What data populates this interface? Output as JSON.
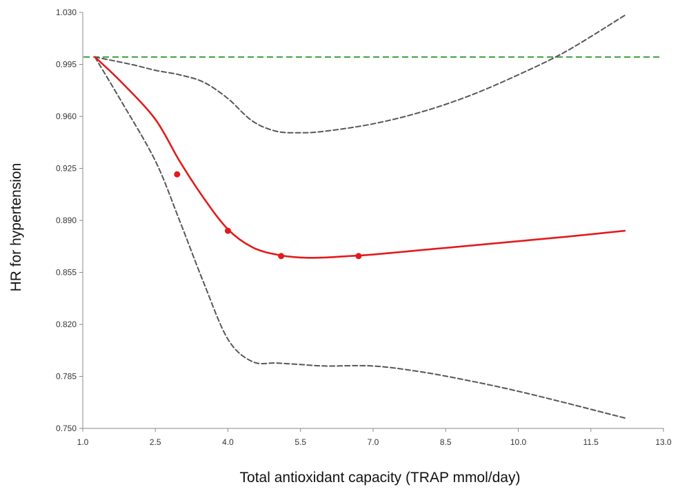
{
  "chart_data": {
    "type": "line",
    "xlabel": "Total antioxidant capacity (TRAP mmol/day)",
    "ylabel": "HR for hypertension",
    "xlim": [
      1.0,
      13.0
    ],
    "ylim": [
      0.75,
      1.03
    ],
    "x_ticks": [
      "1.0",
      "2.5",
      "4.0",
      "5.5",
      "7.0",
      "8.5",
      "10.0",
      "11.5",
      "13.0"
    ],
    "y_ticks": [
      "1.030",
      "0.995",
      "0.960",
      "0.925",
      "0.890",
      "0.855",
      "0.820",
      "0.785",
      "0.750"
    ],
    "grid": false,
    "legend": "none",
    "reference_line": {
      "y": 1.0,
      "color": "#3a9a3a",
      "style": "dashed"
    },
    "series": [
      {
        "role": "estimate",
        "color": "#e31a1c",
        "style": "solid",
        "points": [
          [
            1.25,
            1.0
          ],
          [
            1.8,
            0.983
          ],
          [
            2.5,
            0.958
          ],
          [
            3.0,
            0.93
          ],
          [
            3.5,
            0.905
          ],
          [
            4.0,
            0.884
          ],
          [
            4.5,
            0.872
          ],
          [
            5.0,
            0.867
          ],
          [
            5.5,
            0.865
          ],
          [
            6.0,
            0.865
          ],
          [
            6.5,
            0.866
          ],
          [
            7.0,
            0.867
          ],
          [
            8.0,
            0.87
          ],
          [
            9.0,
            0.873
          ],
          [
            10.0,
            0.876
          ],
          [
            11.0,
            0.879
          ],
          [
            12.2,
            0.883
          ]
        ],
        "markers": [
          [
            2.95,
            0.921
          ],
          [
            4.0,
            0.883
          ],
          [
            5.1,
            0.866
          ],
          [
            6.7,
            0.866
          ]
        ]
      },
      {
        "role": "upper-ci",
        "color": "#555555",
        "style": "dashed",
        "points": [
          [
            1.25,
            1.0
          ],
          [
            2.0,
            0.995
          ],
          [
            2.5,
            0.991
          ],
          [
            3.0,
            0.988
          ],
          [
            3.5,
            0.983
          ],
          [
            4.0,
            0.972
          ],
          [
            4.5,
            0.957
          ],
          [
            5.0,
            0.95
          ],
          [
            5.5,
            0.949
          ],
          [
            6.0,
            0.95
          ],
          [
            7.0,
            0.955
          ],
          [
            8.0,
            0.963
          ],
          [
            9.0,
            0.974
          ],
          [
            10.0,
            0.988
          ],
          [
            11.0,
            1.004
          ],
          [
            12.2,
            1.028
          ]
        ]
      },
      {
        "role": "lower-ci",
        "color": "#555555",
        "style": "dashed",
        "points": [
          [
            1.25,
            1.0
          ],
          [
            1.8,
            0.97
          ],
          [
            2.5,
            0.93
          ],
          [
            3.0,
            0.89
          ],
          [
            3.5,
            0.848
          ],
          [
            4.0,
            0.81
          ],
          [
            4.5,
            0.795
          ],
          [
            5.0,
            0.794
          ],
          [
            5.5,
            0.793
          ],
          [
            6.0,
            0.792
          ],
          [
            7.0,
            0.792
          ],
          [
            8.0,
            0.788
          ],
          [
            9.0,
            0.782
          ],
          [
            10.0,
            0.775
          ],
          [
            11.0,
            0.767
          ],
          [
            12.2,
            0.757
          ]
        ]
      }
    ]
  }
}
